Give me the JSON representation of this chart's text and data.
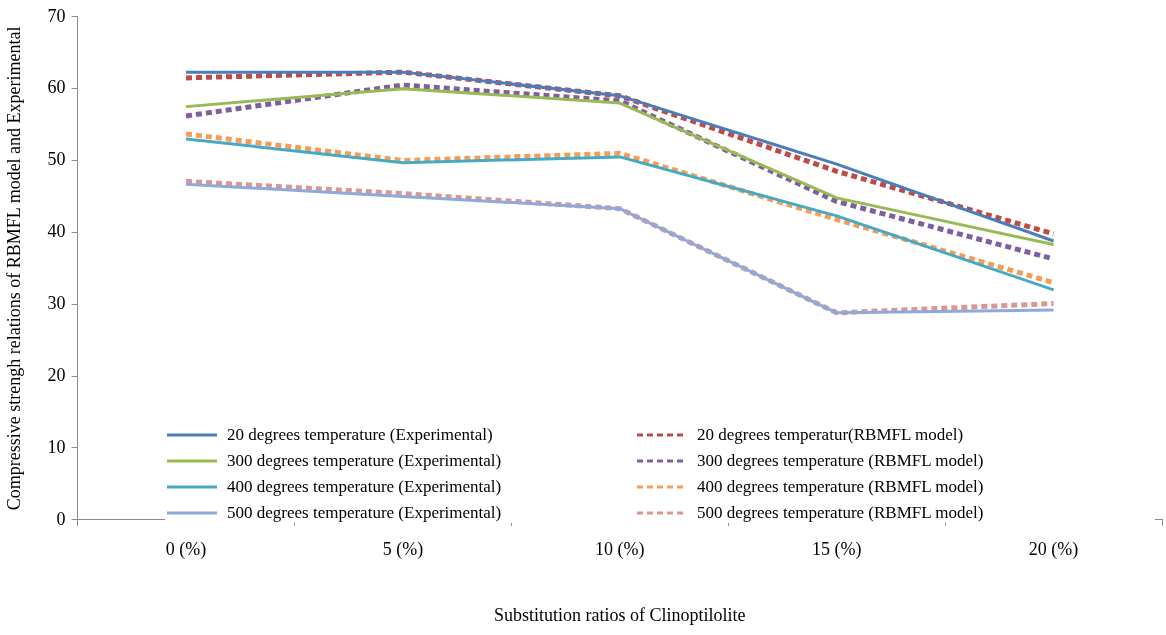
{
  "chart_data": {
    "type": "line",
    "xlabel": "Substitution ratios of Clinoptilolite",
    "ylabel": "Compressive strengh relations of RBMFL model and Experimental",
    "categories": [
      "0 (%)",
      "5 (%)",
      "10 (%)",
      "15 (%)",
      "20 (%)"
    ],
    "ylim": [
      0,
      70
    ],
    "yticks": [
      0,
      10,
      20,
      30,
      40,
      50,
      60,
      70
    ],
    "grid": false,
    "legend": "bottom",
    "marker": "none",
    "series": [
      {
        "name": "20 degrees temperature (Experimental)",
        "color": "#4a7ebb",
        "line_style": "solid",
        "values": [
          62.3,
          62.3,
          59,
          49.5,
          38.8
        ]
      },
      {
        "name": "20 degrees temperatur(RBMFL model)",
        "color": "#be4b48",
        "line_style": "dashed",
        "values": [
          61.5,
          62.3,
          59,
          48.5,
          39.8
        ]
      },
      {
        "name": "300 degrees temperature (Experimental)",
        "color": "#98b954",
        "line_style": "solid",
        "values": [
          57.5,
          60,
          58,
          44.8,
          38.3
        ]
      },
      {
        "name": "300 degrees temperature (RBMFL model)",
        "color": "#7d60a0",
        "line_style": "dashed",
        "values": [
          56.2,
          60.5,
          58.3,
          44.3,
          36.3
        ]
      },
      {
        "name": "400 degrees temperature (Experimental)",
        "color": "#46aac5",
        "line_style": "solid",
        "values": [
          53,
          49.7,
          50.5,
          42.3,
          32
        ]
      },
      {
        "name": "400 degrees temperature (RBMFL model)",
        "color": "#f59d56",
        "line_style": "dashed",
        "values": [
          53.7,
          50,
          51,
          41.8,
          33
        ]
      },
      {
        "name": "500 degrees temperature (Experimental)",
        "color": "#8ea9db",
        "line_style": "solid",
        "values": [
          46.7,
          45,
          43.3,
          28.8,
          29.2
        ]
      },
      {
        "name": "500 degrees temperature (RBMFL model)",
        "color": "#d99694",
        "line_style": "dashed",
        "values": [
          47.1,
          45.4,
          43.3,
          28.8,
          30.1
        ]
      }
    ]
  }
}
